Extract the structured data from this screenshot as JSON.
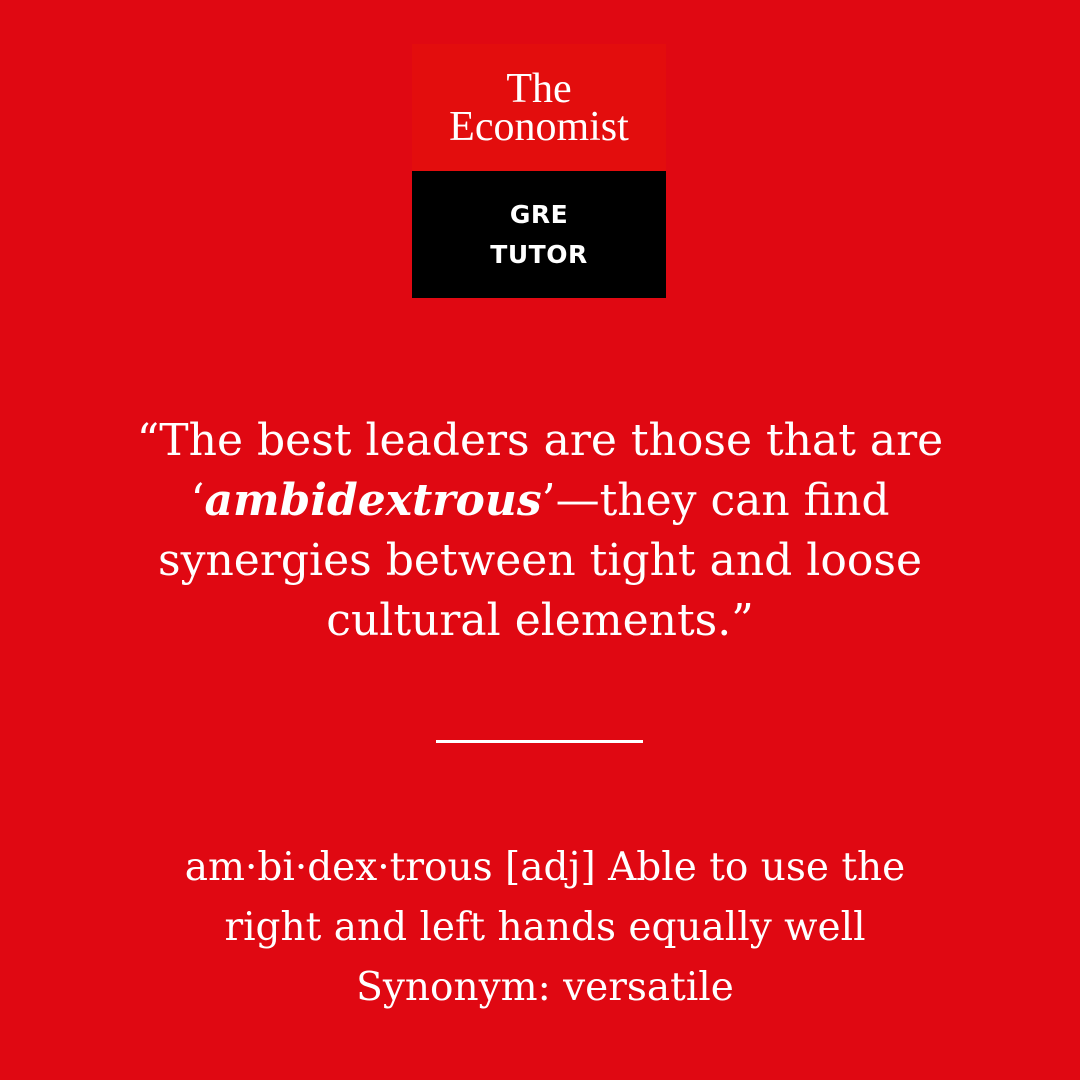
{
  "logo": {
    "brand_line1": "The",
    "brand_line2": "Economist",
    "product_line1": "GRE",
    "product_line2": "TUTOR"
  },
  "quote": {
    "open": "“The best leaders are those that are ‘",
    "keyword": "ambidextrous",
    "rest": "’—they can find synergies between tight and loose cultural elements.”"
  },
  "definition": {
    "line1": "am·bi·dex·trous [adj] Able to use the",
    "line2": "right and left hands equally well",
    "synonym": "Synonym: versatile"
  },
  "colors": {
    "background": "#e00812",
    "logo_top": "#e30d0d",
    "logo_bottom": "#000000",
    "text": "#ffffff"
  }
}
